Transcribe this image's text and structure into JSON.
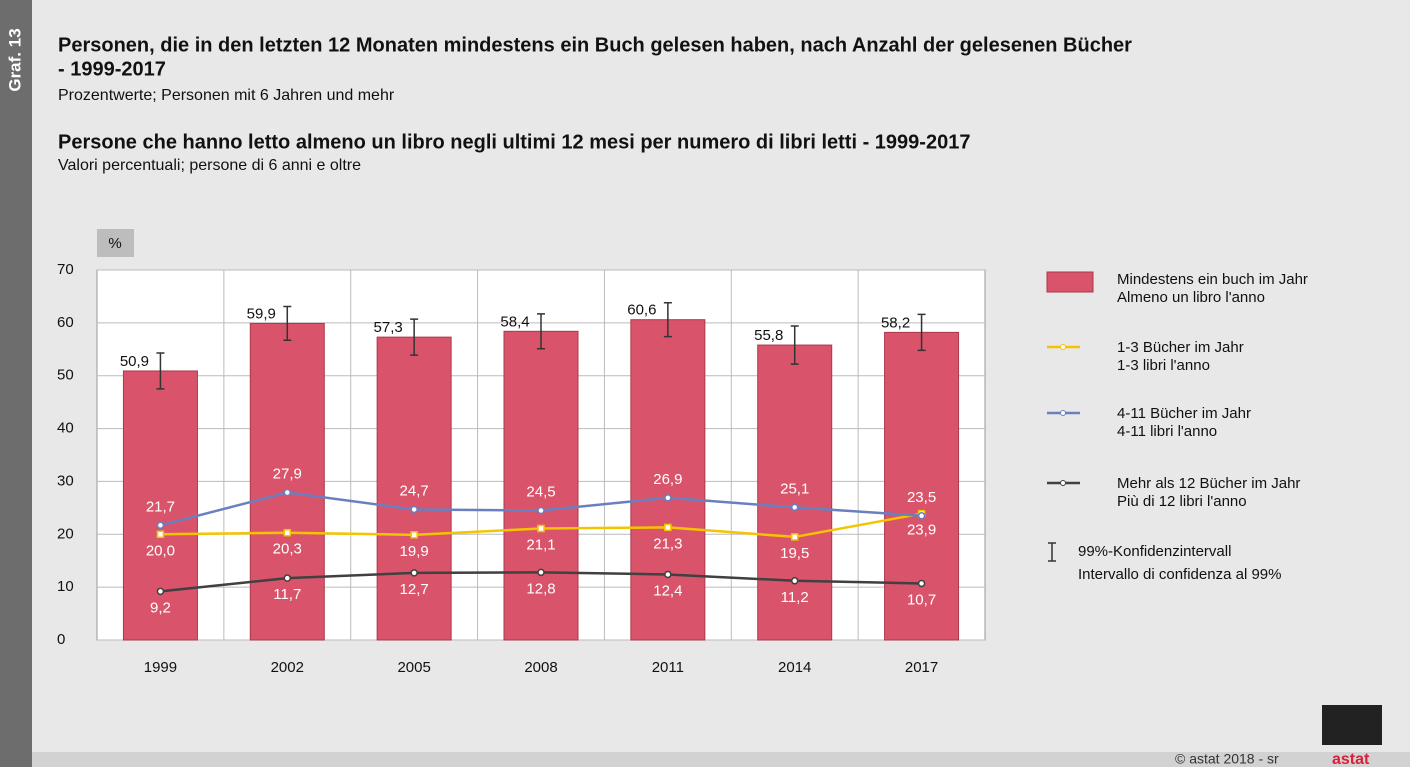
{
  "chart_data": {
    "type": "bar",
    "figure_label": "Graf. 13",
    "title": "Personen, die in den letzten 12 Monaten mindestens ein Buch gelesen haben, nach Anzahl der gelesenen Bücher",
    "title_cont": "- 1999-2017",
    "subtitle": "Prozentwerte; Personen mit 6 Jahren und mehr",
    "title2": "Persone che hanno letto almeno un libro negli ultimi 12 mesi per numero di libri letti - 1999-2017",
    "subtitle2": "Valori percentuali; persone di 6 anni e oltre",
    "y_unit": "%",
    "categories": [
      "1999",
      "2002",
      "2005",
      "2008",
      "2011",
      "2014",
      "2017"
    ],
    "ylim": [
      0,
      70
    ],
    "yticks": [
      0,
      10,
      20,
      30,
      40,
      50,
      60,
      70
    ],
    "grid": true,
    "series": [
      {
        "type": "bar",
        "name": "Mindestens ein buch im Jahr",
        "name2": "Almeno un libro l'anno",
        "color": "#d9546a",
        "values": [
          50.9,
          59.9,
          57.3,
          58.4,
          60.6,
          55.8,
          58.2
        ],
        "value_labels": [
          "50,9",
          "59,9",
          "57,3",
          "58,4",
          "60,6",
          "55,8",
          "58,2"
        ],
        "errors": [
          3.4,
          3.2,
          3.4,
          3.3,
          3.2,
          3.6,
          3.4
        ]
      },
      {
        "type": "line",
        "name": "1-3 Bücher im Jahr",
        "name2": "1-3 libri l'anno",
        "color": "#f5c400",
        "marker": "square",
        "label_side": "below",
        "values": [
          20.0,
          20.3,
          19.9,
          21.1,
          21.3,
          19.5,
          23.9
        ],
        "value_labels": [
          "20,0",
          "20,3",
          "19,9",
          "21,1",
          "21,3",
          "19,5",
          "23,9"
        ]
      },
      {
        "type": "line",
        "name": "4-11 Bücher im Jahr",
        "name2": "4-11 libri l'anno",
        "color": "#6a7fc0",
        "marker": "circle",
        "label_side": "above",
        "values": [
          21.7,
          27.9,
          24.7,
          24.5,
          26.9,
          25.1,
          23.5
        ],
        "value_labels": [
          "21,7",
          "27,9",
          "24,7",
          "24,5",
          "26,9",
          "25,1",
          "23,5"
        ]
      },
      {
        "type": "line",
        "name": "Mehr als 12 Bücher im Jahr",
        "name2": "Più di 12 libri l'anno",
        "color": "#404040",
        "marker": "circle",
        "label_side": "below",
        "values": [
          9.2,
          11.7,
          12.7,
          12.8,
          12.4,
          11.2,
          10.7
        ],
        "value_labels": [
          "9,2",
          "11,7",
          "12,7",
          "12,8",
          "12,4",
          "11,2",
          "10,7"
        ]
      }
    ],
    "error_legend": "99%-Konfidenzintervall",
    "error_legend2": "Intervallo di confidenza al 99%",
    "credit": "© astat 2018 - sr",
    "logo": "astat"
  }
}
